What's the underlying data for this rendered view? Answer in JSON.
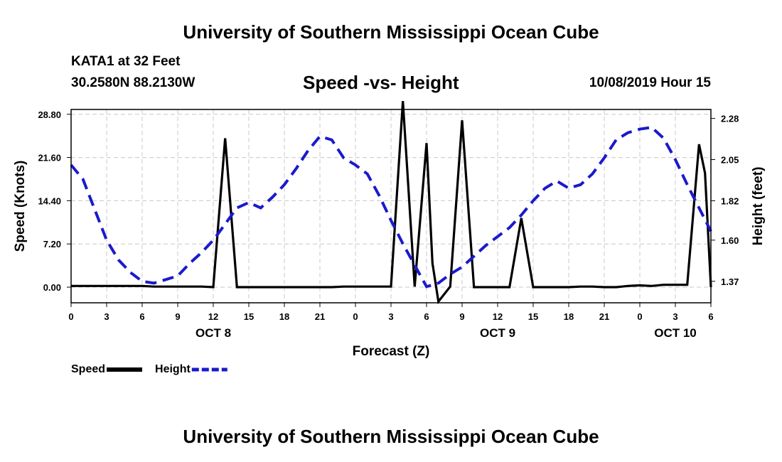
{
  "header": {
    "title_top": "University of Southern Mississippi Ocean Cube",
    "station": "KATA1 at 32 Feet",
    "coords": "30.2580N 88.2130W",
    "issued": "10/08/2019 Hour 15",
    "title_bottom": "University of Southern Mississippi Ocean Cube"
  },
  "chart_data": {
    "type": "line",
    "title": "Speed -vs- Height",
    "xlabel": "Forecast (Z)",
    "ylabel_left": "Speed (Knots)",
    "ylabel_right": "Height (feet)",
    "x_range": [
      0,
      54
    ],
    "x_tick_positions": [
      0,
      3,
      6,
      9,
      12,
      15,
      18,
      21,
      24,
      27,
      30,
      33,
      36,
      39,
      42,
      45,
      48,
      51,
      54
    ],
    "x_tick_labels": [
      "0",
      "3",
      "6",
      "9",
      "12",
      "15",
      "18",
      "21",
      "0",
      "3",
      "6",
      "9",
      "12",
      "15",
      "18",
      "21",
      "0",
      "3",
      "6"
    ],
    "day_labels": [
      {
        "x": 12,
        "text": "OCT 8"
      },
      {
        "x": 36,
        "text": "OCT 9"
      },
      {
        "x": 51,
        "text": "OCT 10"
      }
    ],
    "y_left": {
      "range": [
        -2.6,
        29.6
      ],
      "ticks": [
        0.0,
        7.2,
        14.4,
        21.6,
        28.8
      ],
      "tick_labels": [
        "0.00",
        "7.20",
        "14.40",
        "21.60",
        "28.80"
      ]
    },
    "y_right": {
      "range": [
        1.25,
        2.33
      ],
      "ticks": [
        1.37,
        1.6,
        1.82,
        2.05,
        2.28
      ],
      "tick_labels": [
        "1.37",
        "1.60",
        "1.82",
        "2.05",
        "2.28"
      ]
    },
    "grid": true,
    "legend_position": "bottom-left",
    "series": [
      {
        "name": "Speed",
        "axis": "left",
        "color": "#000000",
        "style": "solid",
        "x": [
          0,
          1,
          2,
          3,
          4,
          5,
          6,
          7,
          8,
          9,
          10,
          11,
          12,
          13,
          14,
          15,
          16,
          17,
          18,
          19,
          20,
          21,
          22,
          23,
          24,
          25,
          26,
          27,
          28,
          29,
          30,
          30.5,
          31,
          32,
          33,
          34,
          35,
          36,
          37,
          38,
          39,
          40,
          41,
          42,
          43,
          44,
          45,
          46,
          47,
          48,
          49,
          50,
          51,
          52,
          53,
          53.5,
          54
        ],
        "values": [
          0.2,
          0.2,
          0.2,
          0.2,
          0.2,
          0.2,
          0.2,
          0.1,
          0.1,
          0.1,
          0.1,
          0.1,
          0.0,
          24.8,
          0.0,
          0.0,
          0.0,
          0.0,
          0.0,
          0.0,
          0.0,
          0.0,
          0.0,
          0.1,
          0.1,
          0.1,
          0.1,
          0.1,
          31.0,
          0.1,
          24.0,
          4.0,
          -2.4,
          0.1,
          27.8,
          0.0,
          0.0,
          0.0,
          0.0,
          11.5,
          0.0,
          0.0,
          0.0,
          0.0,
          0.1,
          0.1,
          0.0,
          0.0,
          0.2,
          0.3,
          0.2,
          0.4,
          0.4,
          0.4,
          23.8,
          19.0,
          0.0
        ]
      },
      {
        "name": "Height",
        "axis": "right",
        "color": "#1a1acc",
        "style": "dashed",
        "x": [
          0,
          1,
          2,
          3,
          4,
          5,
          6,
          7,
          8,
          9,
          10,
          11,
          12,
          13,
          14,
          15,
          16,
          17,
          18,
          19,
          20,
          21,
          22,
          23,
          24,
          25,
          26,
          27,
          28,
          29,
          30,
          31,
          32,
          33,
          34,
          35,
          36,
          37,
          38,
          39,
          40,
          41,
          42,
          43,
          44,
          45,
          46,
          47,
          48,
          49,
          50,
          51,
          52,
          53,
          54
        ],
        "values": [
          2.02,
          1.94,
          1.77,
          1.6,
          1.49,
          1.42,
          1.37,
          1.36,
          1.38,
          1.4,
          1.47,
          1.53,
          1.6,
          1.69,
          1.78,
          1.81,
          1.78,
          1.84,
          1.91,
          2.0,
          2.1,
          2.18,
          2.16,
          2.06,
          2.02,
          1.97,
          1.85,
          1.71,
          1.58,
          1.46,
          1.34,
          1.36,
          1.41,
          1.45,
          1.51,
          1.57,
          1.62,
          1.67,
          1.74,
          1.82,
          1.89,
          1.93,
          1.89,
          1.91,
          1.97,
          2.06,
          2.16,
          2.2,
          2.22,
          2.23,
          2.17,
          2.05,
          1.91,
          1.78,
          1.65
        ]
      }
    ]
  }
}
